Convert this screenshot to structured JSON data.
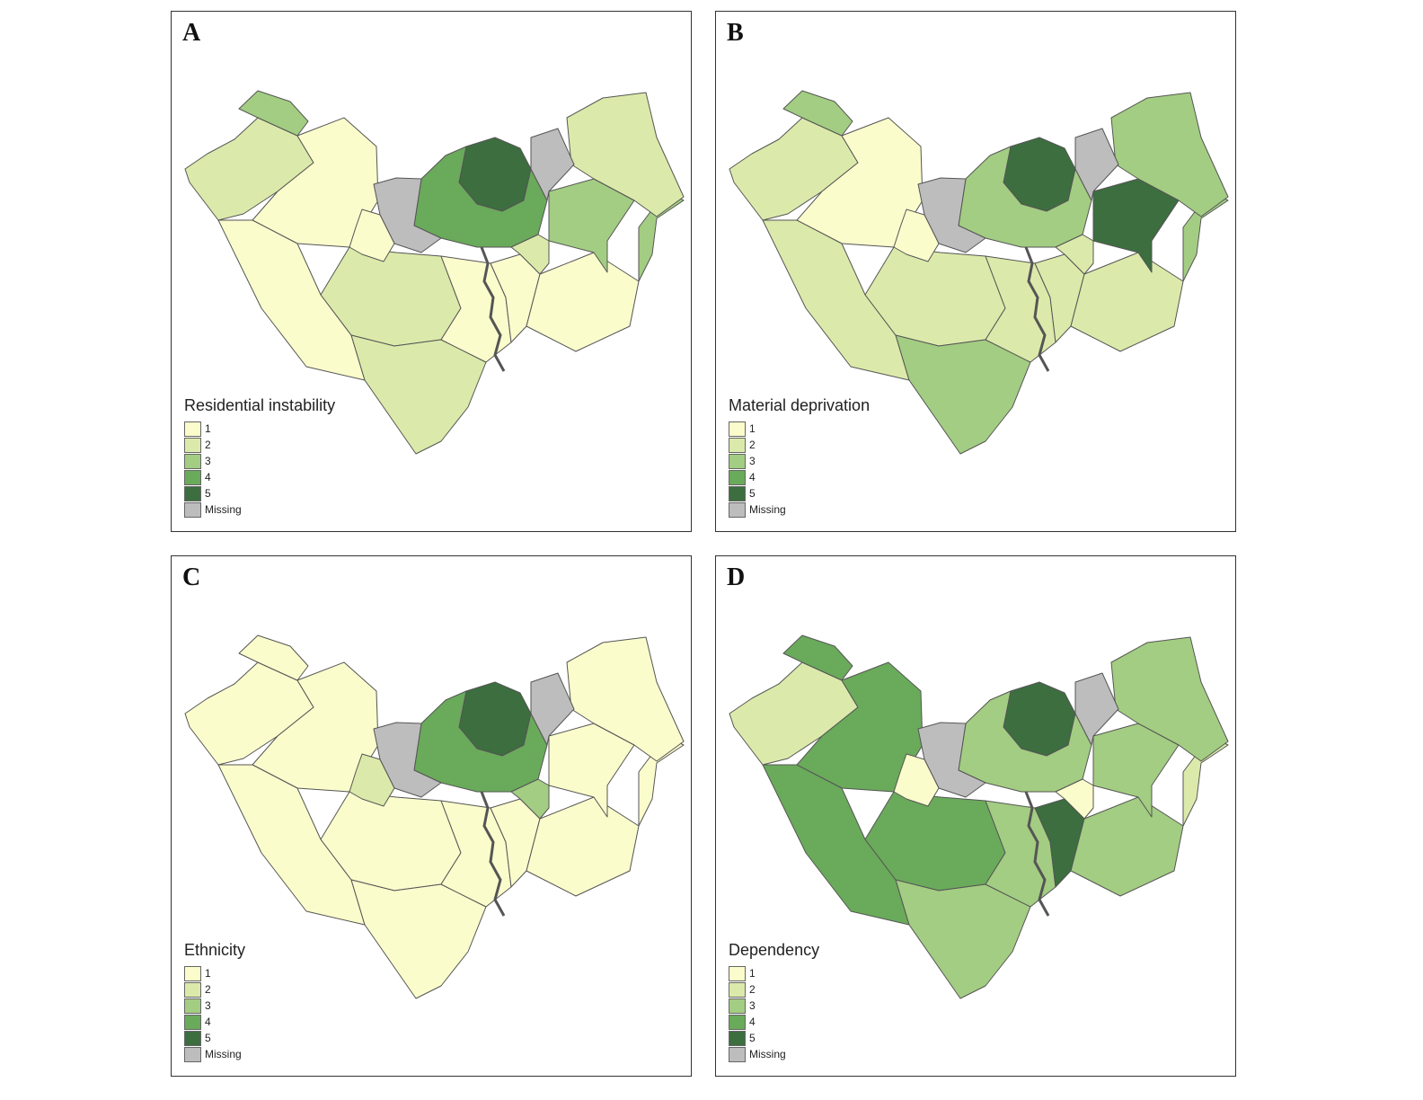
{
  "palette": {
    "1": "#fbfccc",
    "2": "#dbeaaa",
    "3": "#a3cd82",
    "4": "#6aaa5b",
    "5": "#3c6e3f",
    "missing": "#bdbdbd",
    "outline": "#555555"
  },
  "legend_items": [
    {
      "label": "1",
      "key": "1"
    },
    {
      "label": "2",
      "key": "2"
    },
    {
      "label": "3",
      "key": "3"
    },
    {
      "label": "4",
      "key": "4"
    },
    {
      "label": "5",
      "key": "5"
    },
    {
      "label": "Missing",
      "key": "missing"
    }
  ],
  "panels": [
    {
      "letter": "A",
      "legend_title": "Residential instability",
      "region_classes": {
        "far_west": "2",
        "northwest_tip": "3",
        "west_central": "1",
        "southwest": "1",
        "south_central": "2",
        "south_tip": "2",
        "mid_south": "1",
        "river_south": "1",
        "east_south": "1",
        "far_east": "3",
        "east_block": "3",
        "northeast": "2",
        "urban_core": "5",
        "urban_ring": "4",
        "urban_missing": "missing",
        "suburb_west": "1",
        "suburb_east": "2"
      }
    },
    {
      "letter": "B",
      "legend_title": "Material deprivation",
      "region_classes": {
        "far_west": "2",
        "northwest_tip": "3",
        "west_central": "1",
        "southwest": "2",
        "south_central": "2",
        "south_tip": "3",
        "mid_south": "2",
        "river_south": "2",
        "east_south": "2",
        "far_east": "3",
        "east_block": "5",
        "northeast": "3",
        "urban_core": "5",
        "urban_ring": "3",
        "urban_missing": "missing",
        "suburb_west": "1",
        "suburb_east": "2"
      }
    },
    {
      "letter": "C",
      "legend_title": "Ethnicity",
      "region_classes": {
        "far_west": "1",
        "northwest_tip": "1",
        "west_central": "1",
        "southwest": "1",
        "south_central": "1",
        "south_tip": "1",
        "mid_south": "1",
        "river_south": "1",
        "east_south": "1",
        "far_east": "1",
        "east_block": "1",
        "northeast": "1",
        "urban_core": "5",
        "urban_ring": "4",
        "urban_missing": "missing",
        "suburb_west": "2",
        "suburb_east": "3"
      }
    },
    {
      "letter": "D",
      "legend_title": "Dependency",
      "region_classes": {
        "far_west": "2",
        "northwest_tip": "4",
        "west_central": "4",
        "southwest": "4",
        "south_central": "4",
        "south_tip": "3",
        "mid_south": "3",
        "river_south": "5",
        "east_south": "3",
        "far_east": "2",
        "east_block": "3",
        "northeast": "3",
        "urban_core": "5",
        "urban_ring": "3",
        "urban_missing": "missing",
        "suburb_west": "1",
        "suburb_east": "1"
      }
    }
  ]
}
